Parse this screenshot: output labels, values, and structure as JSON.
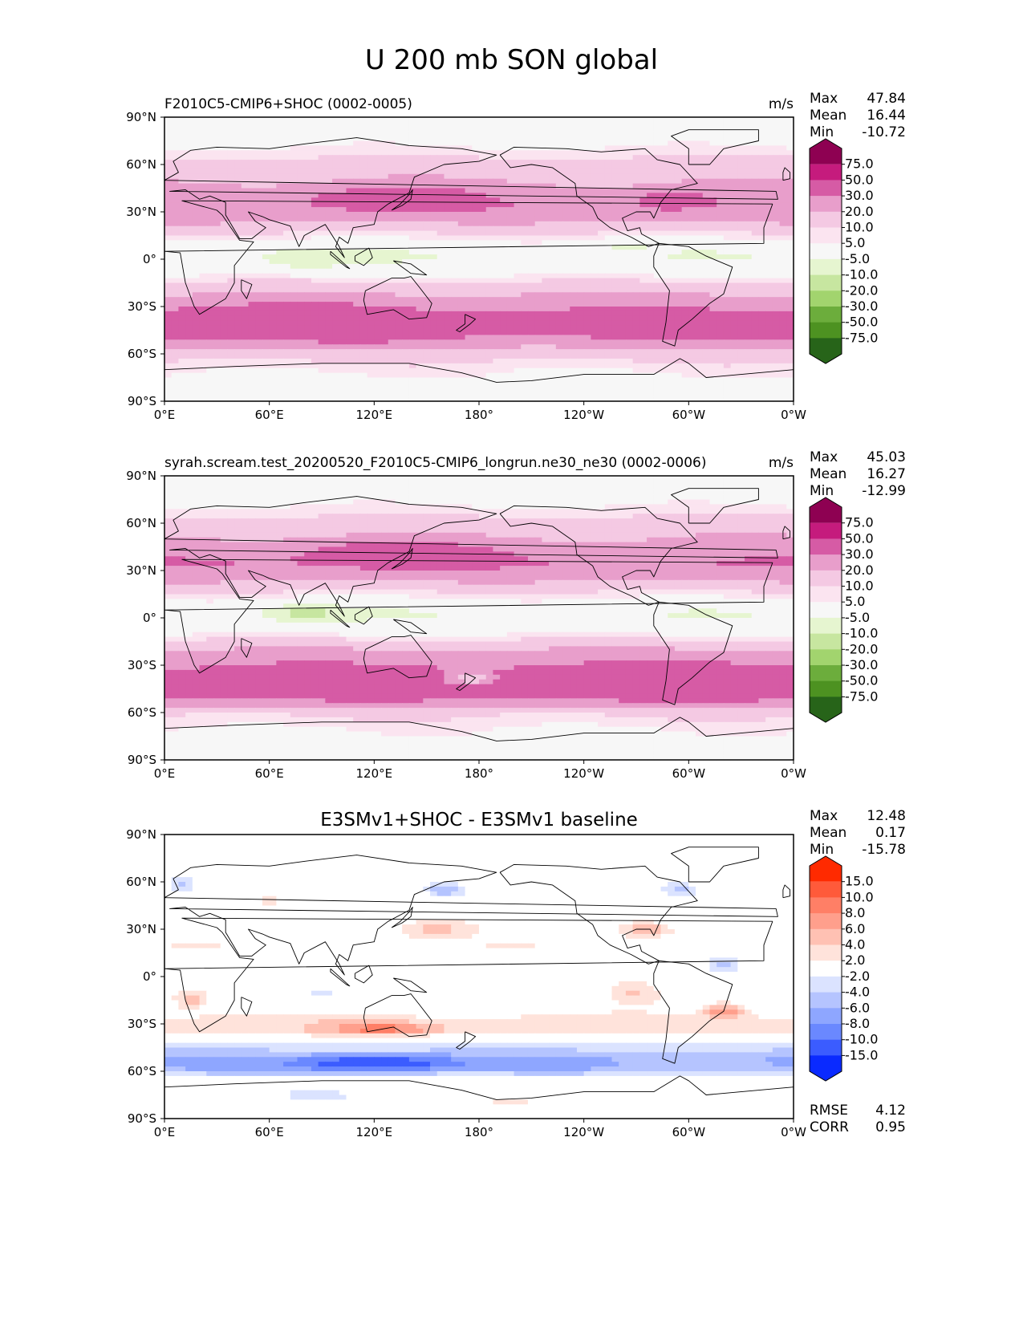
{
  "figure_title": "U 200 mb SON global",
  "chart_data": [
    {
      "type": "heatmap",
      "title": "F2010C5-CMIP6+SHOC (0002-0005)",
      "units": "m/s",
      "stats": [
        [
          "Max",
          "47.84"
        ],
        [
          "Mean",
          "16.44"
        ],
        [
          "Min",
          "-10.72"
        ]
      ],
      "x_ticks": [
        "0°E",
        "60°E",
        "120°E",
        "180°",
        "120°W",
        "60°W",
        "0°W"
      ],
      "y_ticks": [
        "90°N",
        "60°N",
        "30°N",
        "0°",
        "30°S",
        "60°S",
        "90°S"
      ],
      "colorbar": {
        "labels": [
          "75.0",
          "50.0",
          "30.0",
          "20.0",
          "10.0",
          "5.0",
          "-5.0",
          "-10.0",
          "-20.0",
          "-30.0",
          "-50.0",
          "-75.0"
        ],
        "colors": [
          "#8e0152",
          "#c51b7d",
          "#d65ba5",
          "#e89ecb",
          "#f4c9e3",
          "#fbe4f0",
          "#f7f7f7",
          "#e6f5d0",
          "#c7e6a0",
          "#a2d46e",
          "#6cad3c",
          "#4d9221",
          "#276419"
        ],
        "extend": "both"
      },
      "field_bands": [
        {
          "lat": 90,
          "value": 0
        },
        {
          "lat": 75,
          "value": 2
        },
        {
          "lat": 62,
          "value": 12
        },
        {
          "lat": 45,
          "value": 22
        },
        {
          "lat": 35,
          "value": 28
        },
        {
          "lat": 25,
          "value": 22
        },
        {
          "lat": 15,
          "value": 8
        },
        {
          "lat": 5,
          "value": -3
        },
        {
          "lat": 0,
          "value": -4
        },
        {
          "lat": -10,
          "value": 4
        },
        {
          "lat": -20,
          "value": 18
        },
        {
          "lat": -35,
          "value": 33
        },
        {
          "lat": -45,
          "value": 35
        },
        {
          "lat": -52,
          "value": 28
        },
        {
          "lat": -60,
          "value": 14
        },
        {
          "lat": -70,
          "value": 6
        },
        {
          "lat": -78,
          "value": 2
        },
        {
          "lat": -90,
          "value": 0
        }
      ],
      "features": [
        {
          "lon": 130,
          "lat": 38,
          "dlon": 45,
          "dlat": 8,
          "value": 42
        },
        {
          "lon": 290,
          "lat": 37,
          "dlon": 20,
          "dlat": 6,
          "value": 40
        },
        {
          "lon": 80,
          "lat": 0,
          "dlon": 30,
          "dlat": 7,
          "value": -10
        },
        {
          "lon": 265,
          "lat": 8,
          "dlon": 18,
          "dlat": 4,
          "value": -6
        },
        {
          "lon": 60,
          "lat": -40,
          "dlon": 70,
          "dlat": 10,
          "value": 38
        }
      ]
    },
    {
      "type": "heatmap",
      "title": "syrah.scream.test_20200520_F2010C5-CMIP6_longrun.ne30_ne30 (0002-0006)",
      "units": "m/s",
      "stats": [
        [
          "Max",
          "45.03"
        ],
        [
          "Mean",
          "16.27"
        ],
        [
          "Min",
          "-12.99"
        ]
      ],
      "x_ticks": [
        "0°E",
        "60°E",
        "120°E",
        "180°",
        "120°W",
        "60°W",
        "0°W"
      ],
      "y_ticks": [
        "90°N",
        "60°N",
        "30°N",
        "0°",
        "30°S",
        "60°S",
        "90°S"
      ],
      "colorbar": {
        "labels": [
          "75.0",
          "50.0",
          "30.0",
          "20.0",
          "10.0",
          "5.0",
          "-5.0",
          "-10.0",
          "-20.0",
          "-30.0",
          "-50.0",
          "-75.0"
        ],
        "colors": [
          "#8e0152",
          "#c51b7d",
          "#d65ba5",
          "#e89ecb",
          "#f4c9e3",
          "#fbe4f0",
          "#f7f7f7",
          "#e6f5d0",
          "#c7e6a0",
          "#a2d46e",
          "#6cad3c",
          "#4d9221",
          "#276419"
        ],
        "extend": "both"
      },
      "field_bands": [
        {
          "lat": 90,
          "value": 0
        },
        {
          "lat": 75,
          "value": 2
        },
        {
          "lat": 62,
          "value": 12
        },
        {
          "lat": 45,
          "value": 24
        },
        {
          "lat": 35,
          "value": 30
        },
        {
          "lat": 25,
          "value": 22
        },
        {
          "lat": 15,
          "value": 8
        },
        {
          "lat": 5,
          "value": -3
        },
        {
          "lat": 0,
          "value": -4
        },
        {
          "lat": -10,
          "value": 4
        },
        {
          "lat": -20,
          "value": 20
        },
        {
          "lat": -35,
          "value": 35
        },
        {
          "lat": -45,
          "value": 36
        },
        {
          "lat": -52,
          "value": 30
        },
        {
          "lat": -60,
          "value": 12
        },
        {
          "lat": -70,
          "value": 5
        },
        {
          "lat": -78,
          "value": 2
        },
        {
          "lat": -90,
          "value": 0
        }
      ],
      "features": [
        {
          "lon": 130,
          "lat": 40,
          "dlon": 50,
          "dlat": 8,
          "value": 42
        },
        {
          "lon": 80,
          "lat": 3,
          "dlon": 25,
          "dlat": 6,
          "value": -12
        },
        {
          "lon": 175,
          "lat": -38,
          "dlon": 12,
          "dlat": 4,
          "value": 12
        },
        {
          "lon": 300,
          "lat": -40,
          "dlon": 40,
          "dlat": 10,
          "value": 40
        }
      ]
    },
    {
      "type": "heatmap",
      "title": "E3SMv1+SHOC - E3SMv1 baseline",
      "units": "",
      "stats": [
        [
          "Max",
          "12.48"
        ],
        [
          "Mean",
          "0.17"
        ],
        [
          "Min",
          "-15.78"
        ]
      ],
      "bottom_stats": [
        [
          "RMSE",
          "4.12"
        ],
        [
          "CORR",
          "0.95"
        ]
      ],
      "x_ticks": [
        "0°E",
        "60°E",
        "120°E",
        "180°",
        "120°W",
        "60°W",
        "0°W"
      ],
      "y_ticks": [
        "90°N",
        "60°N",
        "30°N",
        "0°",
        "30°S",
        "60°S",
        "90°S"
      ],
      "colorbar": {
        "labels": [
          "15.0",
          "10.0",
          "8.0",
          "6.0",
          "4.0",
          "2.0",
          "-2.0",
          "-4.0",
          "-6.0",
          "-8.0",
          "-10.0",
          "-15.0"
        ],
        "colors": [
          "#ff2a00",
          "#ff5a3a",
          "#ff7f66",
          "#ff9f8c",
          "#ffc1b3",
          "#ffe3db",
          "#ffffff",
          "#dbe3ff",
          "#b5c4ff",
          "#8ea6ff",
          "#6a88ff",
          "#3b5cff",
          "#0a2aff"
        ],
        "extend": "both"
      },
      "field_bands": [
        {
          "lat": 90,
          "value": 0
        },
        {
          "lat": 60,
          "value": 0
        },
        {
          "lat": 40,
          "value": 0
        },
        {
          "lat": 20,
          "value": 1.5
        },
        {
          "lat": 0,
          "value": 0
        },
        {
          "lat": -20,
          "value": 0.5
        },
        {
          "lat": -28,
          "value": 3
        },
        {
          "lat": -35,
          "value": 3
        },
        {
          "lat": -42,
          "value": -2
        },
        {
          "lat": -52,
          "value": -6
        },
        {
          "lat": -58,
          "value": -6
        },
        {
          "lat": -65,
          "value": -1
        },
        {
          "lat": -75,
          "value": 0
        },
        {
          "lat": -90,
          "value": 0
        }
      ],
      "features": [
        {
          "lon": 125,
          "lat": -33,
          "dlon": 30,
          "dlat": 4,
          "value": 9
        },
        {
          "lon": 120,
          "lat": -55,
          "dlon": 45,
          "dlat": 5,
          "value": -13
        },
        {
          "lon": 320,
          "lat": -22,
          "dlon": 12,
          "dlat": 5,
          "value": 8
        },
        {
          "lon": 15,
          "lat": -15,
          "dlon": 10,
          "dlat": 6,
          "value": 5
        },
        {
          "lon": 270,
          "lat": -10,
          "dlon": 15,
          "dlat": 8,
          "value": 4
        },
        {
          "lon": 155,
          "lat": 30,
          "dlon": 18,
          "dlat": 5,
          "value": 5
        },
        {
          "lon": 275,
          "lat": 30,
          "dlon": 15,
          "dlat": 5,
          "value": 6
        },
        {
          "lon": 160,
          "lat": 55,
          "dlon": 12,
          "dlat": 6,
          "value": -6
        },
        {
          "lon": 295,
          "lat": 55,
          "dlon": 10,
          "dlat": 5,
          "value": -5
        },
        {
          "lon": 10,
          "lat": 58,
          "dlon": 8,
          "dlat": 6,
          "value": -4
        },
        {
          "lon": 320,
          "lat": 8,
          "dlon": 10,
          "dlat": 5,
          "value": -4
        },
        {
          "lon": 90,
          "lat": -10,
          "dlon": 15,
          "dlat": 3,
          "value": -3
        },
        {
          "lon": 60,
          "lat": 48,
          "dlon": 8,
          "dlat": 4,
          "value": 4
        },
        {
          "lon": 90,
          "lat": -75,
          "dlon": 25,
          "dlat": 3,
          "value": -3
        },
        {
          "lon": 200,
          "lat": -80,
          "dlon": 15,
          "dlat": 3,
          "value": 3
        }
      ]
    }
  ]
}
